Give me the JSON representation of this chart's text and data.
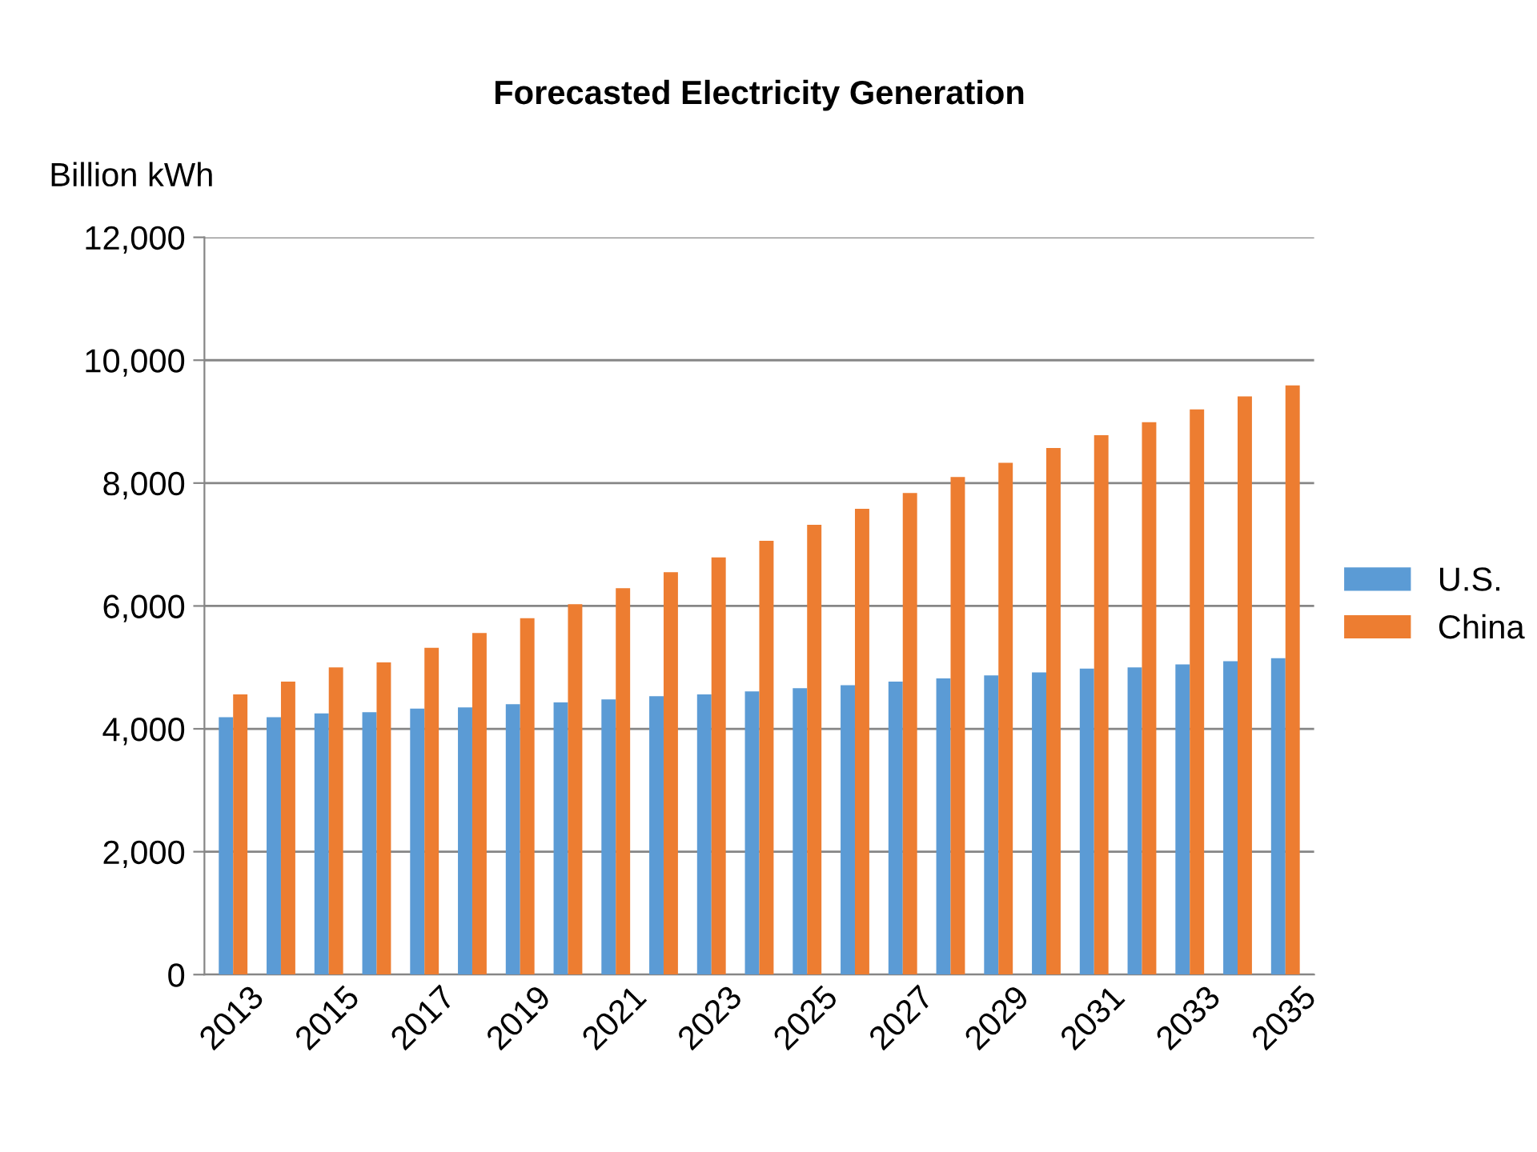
{
  "chart_data": {
    "type": "bar",
    "title": "Forecasted Electricity Generation",
    "ylabel": "Billion kWh",
    "categories": [
      "2013",
      null,
      "2015",
      null,
      "2017",
      null,
      "2019",
      null,
      "2021",
      null,
      "2023",
      null,
      "2025",
      null,
      "2027",
      null,
      "2029",
      null,
      "2031",
      null,
      "2033",
      null,
      "2035"
    ],
    "series": [
      {
        "name": "U.S.",
        "color": "#5b9bd5",
        "values": [
          4190,
          4190,
          4250,
          4270,
          4330,
          4350,
          4400,
          4430,
          4480,
          4530,
          4560,
          4610,
          4660,
          4710,
          4770,
          4820,
          4870,
          4920,
          4980,
          5000,
          5050,
          5100,
          5150
        ]
      },
      {
        "name": "China",
        "color": "#ed7d31",
        "values": [
          4560,
          4770,
          5000,
          5080,
          5320,
          5560,
          5800,
          6030,
          6290,
          6550,
          6790,
          7060,
          7320,
          7580,
          7840,
          8100,
          8330,
          8570,
          8780,
          8990,
          9200,
          9410,
          9590
        ]
      }
    ],
    "ylim": [
      0,
      12000
    ],
    "yticks": [
      {
        "value": 0,
        "label": "0"
      },
      {
        "value": 2000,
        "label": "2,000"
      },
      {
        "value": 4000,
        "label": "4,000"
      },
      {
        "value": 6000,
        "label": "6,000"
      },
      {
        "value": 8000,
        "label": "8,000"
      },
      {
        "value": 10000,
        "label": "10,000"
      },
      {
        "value": 12000,
        "label": "12,000"
      }
    ],
    "grid": "y",
    "legend": "right"
  }
}
